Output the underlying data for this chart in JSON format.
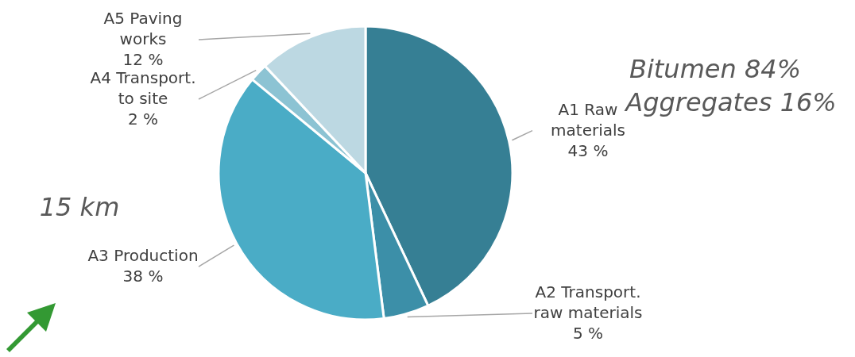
{
  "chart_data": {
    "type": "pie",
    "categories": [
      "A1 Raw materials",
      "A2 Transport. raw materials",
      "A3 Production",
      "A4 Transport. to site",
      "A5 Paving works"
    ],
    "values": [
      43,
      5,
      38,
      2,
      12
    ],
    "value_labels": [
      "43 %",
      "5 %",
      "38 %",
      "2 %",
      "12 %"
    ],
    "colors": [
      "#367f94",
      "#3c8fa8",
      "#4aacc6",
      "#8cc3d3",
      "#bcd8e2"
    ],
    "annotations": [
      "Bitumen 84%",
      "Aggregates 16%",
      "15 km"
    ]
  }
}
